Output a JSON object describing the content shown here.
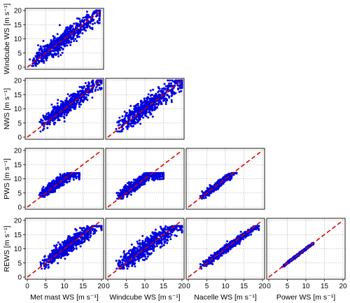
{
  "chart_data": {
    "type": "scatter",
    "layout": "lower-triangular pairwise scatter matrix",
    "variables": [
      "Met mast WS",
      "Windcube WS",
      "Nacelle WS",
      "Power WS"
    ],
    "unit_label": "[m s⁻¹]",
    "x_labels": [
      "Met mast WS [m s⁻¹]",
      "Windcube WS [m s⁻¹]",
      "Nacelle WS [m s⁻¹]",
      "Power WS [m s⁻¹]"
    ],
    "y_labels": [
      "Windcube WS [m s⁻¹]",
      "NWS [m s⁻¹]",
      "PWS [m s⁻¹]",
      "REWS [m s⁻¹]"
    ],
    "xlim": [
      0,
      20
    ],
    "ylim": [
      0,
      20
    ],
    "ticks": [
      0,
      5,
      10,
      15,
      20
    ],
    "tick_labels": [
      "0",
      "5",
      "10",
      "15",
      "20"
    ],
    "grid": true,
    "point_color": "#0000dd",
    "reference_line": {
      "style": "dashed",
      "color": "#dd0000",
      "slope": 1,
      "intercept": 0
    },
    "panels": [
      {
        "row": 0,
        "col": 0,
        "x": "Met mast WS",
        "y": "Windcube WS",
        "x_range": [
          0.5,
          19.5
        ],
        "y_range": [
          0.5,
          20
        ],
        "relation": "close to 1:1 with moderate scatter"
      },
      {
        "row": 1,
        "col": 0,
        "x": "Met mast WS",
        "y": "NWS",
        "x_range": [
          3,
          20
        ],
        "y_range": [
          2,
          20
        ],
        "relation": "close to 1:1, offset upward at low speed"
      },
      {
        "row": 1,
        "col": 1,
        "x": "Windcube WS",
        "y": "NWS",
        "x_range": [
          2,
          20
        ],
        "y_range": [
          2,
          20
        ],
        "relation": "close to 1:1 with wide scatter"
      },
      {
        "row": 2,
        "col": 0,
        "x": "Met mast WS",
        "y": "PWS",
        "x_range": [
          3,
          14
        ],
        "y_range": [
          3,
          12
        ],
        "relation": "follows 1:1 then saturates near 11"
      },
      {
        "row": 2,
        "col": 1,
        "x": "Windcube WS",
        "y": "PWS",
        "x_range": [
          2,
          15
        ],
        "y_range": [
          3,
          12
        ],
        "relation": "follows 1:1 then saturates near 11"
      },
      {
        "row": 2,
        "col": 2,
        "x": "Nacelle WS",
        "y": "PWS",
        "x_range": [
          3,
          13
        ],
        "y_range": [
          3,
          12
        ],
        "relation": "tight along 1:1"
      },
      {
        "row": 3,
        "col": 0,
        "x": "Met mast WS",
        "y": "REWS",
        "x_range": [
          3,
          20
        ],
        "y_range": [
          3,
          18
        ],
        "relation": "close to 1:1 with moderate scatter"
      },
      {
        "row": 3,
        "col": 1,
        "x": "Windcube WS",
        "y": "REWS",
        "x_range": [
          2,
          20
        ],
        "y_range": [
          3,
          18
        ],
        "relation": "close to 1:1 with wide scatter"
      },
      {
        "row": 3,
        "col": 2,
        "x": "Nacelle WS",
        "y": "REWS",
        "x_range": [
          3,
          19
        ],
        "y_range": [
          3,
          18
        ],
        "relation": "tight along 1:1"
      },
      {
        "row": 3,
        "col": 3,
        "x": "Power WS",
        "y": "REWS",
        "x_range": [
          3.5,
          12
        ],
        "y_range": [
          3.5,
          12
        ],
        "relation": "very tight curve along 1:1 up to about 12"
      }
    ]
  }
}
